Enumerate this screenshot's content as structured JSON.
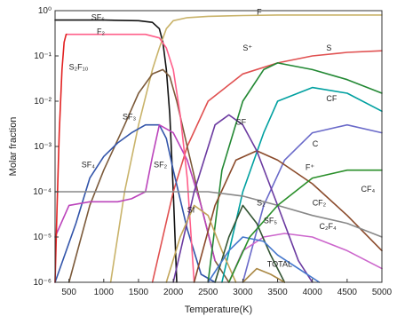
{
  "chart_data": {
    "type": "line",
    "xlabel": "Temperature(K)",
    "ylabel": "Molar fraction",
    "xscale": "linear",
    "yscale": "log",
    "xlim": [
      300,
      5000
    ],
    "ylim": [
      1e-06,
      1
    ],
    "x_ticks": [
      {
        "value": 500,
        "label": "500"
      },
      {
        "value": 1000,
        "label": "1000"
      },
      {
        "value": 1500,
        "label": "1500"
      },
      {
        "value": 2000,
        "label": "2000"
      },
      {
        "value": 2500,
        "label": "2500"
      },
      {
        "value": 3000,
        "label": "3000"
      },
      {
        "value": 3500,
        "label": "3500"
      },
      {
        "value": 4000,
        "label": "4000"
      },
      {
        "value": 4500,
        "label": "4500"
      },
      {
        "value": 5000,
        "label": "5000"
      }
    ],
    "y_ticks": [
      {
        "value": 1,
        "label": "10⁰"
      },
      {
        "value": 0.1,
        "label": "10⁻¹"
      },
      {
        "value": 0.01,
        "label": "10⁻²"
      },
      {
        "value": 0.001,
        "label": "10⁻³"
      },
      {
        "value": 0.0001,
        "label": "10⁻⁴"
      },
      {
        "value": 1e-05,
        "label": "10⁻⁵"
      },
      {
        "value": 1e-06,
        "label": "10⁻⁶"
      }
    ],
    "grid": false,
    "legend": "inline labels",
    "series": [
      {
        "name": "SF₆",
        "color": "#111111",
        "label_at": [
          820,
          0.62
        ],
        "x": [
          300,
          500,
          800,
          1000,
          1200,
          1500,
          1700,
          1800,
          1850,
          1900,
          1950,
          2000,
          2050
        ],
        "y": [
          0.62,
          0.62,
          0.62,
          0.62,
          0.61,
          0.6,
          0.55,
          0.4,
          0.2,
          0.05,
          0.005,
          0.0001,
          1e-06
        ]
      },
      {
        "name": "F",
        "color": "#c9b36a",
        "label_at": [
          3200,
          0.82
        ],
        "x": [
          1100,
          1300,
          1500,
          1700,
          1800,
          1900,
          2000,
          2200,
          2500,
          3000,
          3500,
          4000,
          5000
        ],
        "y": [
          1e-06,
          0.0001,
          0.003,
          0.05,
          0.15,
          0.4,
          0.6,
          0.7,
          0.75,
          0.78,
          0.8,
          0.8,
          0.8
        ]
      },
      {
        "name": "S",
        "color": "#e05050",
        "label_at": [
          4200,
          0.13
        ],
        "x": [
          1700,
          2000,
          2200,
          2500,
          3000,
          3500,
          4000,
          4500,
          5000
        ],
        "y": [
          1e-06,
          0.0001,
          0.001,
          0.01,
          0.04,
          0.07,
          0.1,
          0.12,
          0.13
        ]
      },
      {
        "name": "SF₃",
        "color": "#7c5a3a",
        "label_at": [
          1270,
          0.004
        ],
        "x": [
          500,
          800,
          1000,
          1300,
          1500,
          1700,
          1850,
          1950,
          2050,
          2200,
          2400,
          2600,
          2800
        ],
        "y": [
          1e-06,
          5e-05,
          0.0003,
          0.003,
          0.015,
          0.04,
          0.05,
          0.035,
          0.01,
          0.001,
          5e-05,
          3e-06,
          1e-06
        ]
      },
      {
        "name": "SF₄",
        "color": "#3355aa",
        "label_at": [
          680,
          0.00035
        ],
        "x": [
          300,
          600,
          800,
          1000,
          1200,
          1400,
          1600,
          1800,
          1900,
          2000,
          2200,
          2400,
          2600
        ],
        "y": [
          1e-06,
          2e-05,
          0.0002,
          0.0006,
          0.0012,
          0.002,
          0.003,
          0.003,
          0.0015,
          0.0003,
          1.5e-05,
          1.5e-06,
          5e-07
        ]
      },
      {
        "name": "SF₂",
        "color": "#bb44bb",
        "label_at": [
          1720,
          0.00035
        ],
        "x": [
          300,
          500,
          800,
          1000,
          1200,
          1400,
          1600,
          1700,
          1800,
          2000,
          2200,
          2400,
          2600
        ],
        "y": [
          1e-05,
          5e-05,
          6e-05,
          6e-05,
          6e-05,
          7e-05,
          0.0001,
          0.0006,
          0.003,
          0.002,
          0.0005,
          5e-05,
          3e-06
        ]
      },
      {
        "name": "S₂F₁₀",
        "color": "#e22222",
        "label_at": [
          500,
          0.05
        ],
        "x": [
          300,
          330,
          360,
          400,
          430,
          460,
          480
        ],
        "y": [
          1e-06,
          5e-05,
          0.002,
          0.05,
          0.2,
          0.3,
          0.3
        ]
      },
      {
        "name": "F₂",
        "color": "#ff5f8a",
        "label_at": [
          900,
          0.3
        ],
        "x": [
          480,
          800,
          1200,
          1600,
          1800,
          1900,
          2000,
          2100,
          2200,
          2300
        ],
        "y": [
          0.3,
          0.3,
          0.3,
          0.3,
          0.25,
          0.15,
          0.05,
          0.005,
          0.0002,
          1e-06
        ]
      },
      {
        "name": "S⁺",
        "color": "#228833",
        "label_at": [
          3000,
          0.13
        ],
        "x": [
          2500,
          2700,
          3000,
          3300,
          3500,
          4000,
          4500,
          5000
        ],
        "y": [
          1e-06,
          0.0003,
          0.01,
          0.05,
          0.07,
          0.05,
          0.03,
          0.015
        ]
      },
      {
        "name": "CF",
        "color": "#00a0a0",
        "label_at": [
          4200,
          0.01
        ],
        "x": [
          2700,
          3000,
          3300,
          3500,
          4000,
          4500,
          5000
        ],
        "y": [
          1e-06,
          0.0001,
          0.002,
          0.01,
          0.02,
          0.015,
          0.006
        ]
      },
      {
        "name": "C",
        "color": "#6a6ac9",
        "label_at": [
          4000,
          0.001
        ],
        "x": [
          3000,
          3300,
          3600,
          4000,
          4500,
          5000
        ],
        "y": [
          1e-06,
          5e-05,
          0.0005,
          0.002,
          0.003,
          0.002
        ]
      },
      {
        "name": "CF₂",
        "color": "#8a4a2a",
        "label_at": [
          4000,
          5e-05
        ],
        "x": [
          2300,
          2600,
          2900,
          3200,
          3500,
          4000,
          4500,
          5000
        ],
        "y": [
          1e-06,
          5e-05,
          0.0005,
          0.0008,
          0.0005,
          0.00015,
          3e-05,
          5e-06
        ]
      },
      {
        "name": "CF₄",
        "color": "#888888",
        "label_at": [
          4700,
          0.0001
        ],
        "x": [
          300,
          1000,
          2000,
          2500,
          3000,
          3500,
          4000,
          4500,
          5000
        ],
        "y": [
          0.0001,
          0.0001,
          0.0001,
          0.0001,
          8e-05,
          5e-05,
          3e-05,
          2e-05,
          1e-05
        ]
      },
      {
        "name": "C₂F₄",
        "color": "#cc66cc",
        "label_at": [
          4100,
          1.5e-05
        ],
        "x": [
          2800,
          3000,
          3300,
          3600,
          4000,
          4500,
          5000
        ],
        "y": [
          1e-06,
          5e-06,
          1e-05,
          1.2e-05,
          1e-05,
          5e-06,
          2e-06
        ]
      },
      {
        "name": "SF",
        "color": "#6b3aa0",
        "label_at": [
          2900,
          0.003
        ],
        "x": [
          2000,
          2300,
          2600,
          2800,
          3000,
          3200,
          3500,
          3800,
          4000
        ],
        "y": [
          1e-06,
          0.0001,
          0.003,
          0.005,
          0.003,
          0.0008,
          5e-05,
          3e-06,
          1e-06
        ]
      },
      {
        "name": "Sf",
        "color": "#c2a55a",
        "label_at": [
          2200,
          3.5e-05
        ],
        "x": [
          1900,
          2100,
          2300,
          2500,
          2700,
          2900
        ],
        "y": [
          1e-06,
          1e-05,
          5e-05,
          3e-05,
          5e-06,
          1e-06
        ]
      },
      {
        "name": "S₂",
        "color": "#335533",
        "label_at": [
          3200,
          5e-05
        ],
        "x": [
          2600,
          2800,
          3000,
          3200,
          3400,
          3600
        ],
        "y": [
          1e-06,
          1e-05,
          5e-05,
          2e-05,
          4e-06,
          1e-06
        ]
      },
      {
        "name": "SF₅",
        "color": "#4477cc",
        "label_at": [
          3300,
          2e-05
        ],
        "x": [
          2500,
          2800,
          3000,
          3300,
          3500,
          3800,
          4100
        ],
        "y": [
          1e-06,
          5e-06,
          1e-05,
          8e-06,
          4e-06,
          2e-06,
          1e-06
        ]
      },
      {
        "name": "F⁺",
        "color": "#2a8f2a",
        "label_at": [
          3900,
          0.0003
        ],
        "x": [
          2800,
          3100,
          3500,
          4000,
          4500,
          5000
        ],
        "y": [
          1e-06,
          1e-05,
          5e-05,
          0.0002,
          0.0003,
          0.0003
        ]
      },
      {
        "name": "TOTAL",
        "color": "#aa8844",
        "label_at": [
          3350,
          2.2e-06
        ],
        "x": [
          3000,
          3200,
          3400,
          3600
        ],
        "y": [
          1e-06,
          2e-06,
          1.5e-06,
          1e-06
        ]
      }
    ]
  }
}
